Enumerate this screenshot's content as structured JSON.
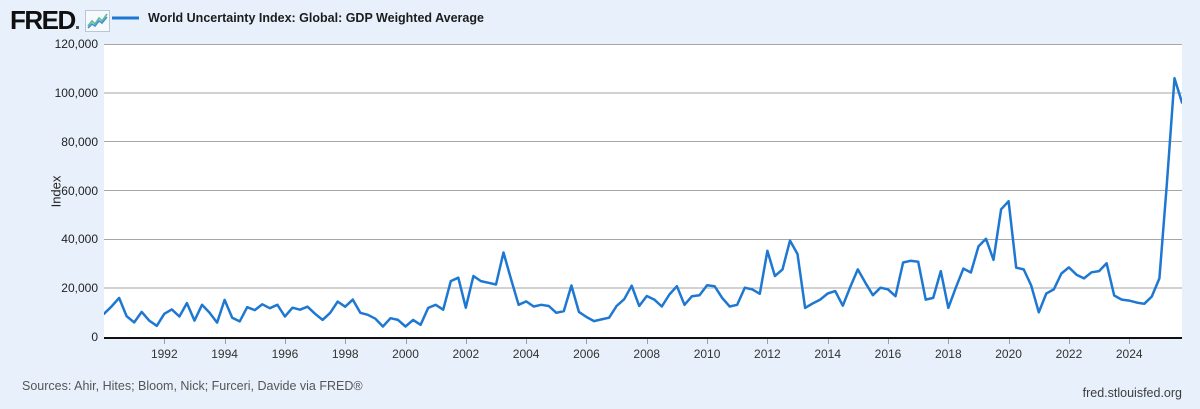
{
  "header": {
    "logo_text": "FRED",
    "legend_label": "World Uncertainty Index: Global: GDP Weighted Average"
  },
  "y_axis": {
    "title": "Index",
    "tick_labels": [
      "0",
      "20,000",
      "40,000",
      "60,000",
      "80,000",
      "100,000",
      "120,000"
    ]
  },
  "x_axis": {
    "tick_labels": [
      "1992",
      "1994",
      "1996",
      "1998",
      "2000",
      "2002",
      "2004",
      "2006",
      "2008",
      "2010",
      "2012",
      "2014",
      "2016",
      "2018",
      "2020",
      "2022",
      "2024"
    ]
  },
  "footer": {
    "sources": "Sources: Ahir, Hites; Bloom, Nick; Furceri, Davide via FRED®",
    "site": "fred.stlouisfed.org"
  },
  "colors": {
    "line": "#1e78d2",
    "background": "#e8f1fb",
    "plot_background": "#ffffff",
    "gridline": "#a6a6a6",
    "axis": "#111111",
    "logo_icon_blue": "#4a8fd3",
    "logo_icon_teal": "#59bf9b"
  },
  "chart_data": {
    "type": "line",
    "title": "World Uncertainty Index: Global: GDP Weighted Average",
    "ylabel": "Index",
    "xlabel": "",
    "legend_position": "top-left",
    "grid": "horizontal-only",
    "ylim": [
      0,
      120000
    ],
    "y_tick_step": 20000,
    "x_start": 1990.0,
    "x_step": 0.25,
    "x_end": 2025.75,
    "x_tick_years": [
      1992,
      1994,
      1996,
      1998,
      2000,
      2002,
      2004,
      2006,
      2008,
      2010,
      2012,
      2014,
      2016,
      2018,
      2020,
      2022,
      2024
    ],
    "frequency": "quarterly",
    "series": [
      {
        "name": "World Uncertainty Index: Global: GDP Weighted Average",
        "values": [
          9500,
          12500,
          16000,
          8500,
          6000,
          10300,
          6700,
          4600,
          9500,
          11300,
          8400,
          13900,
          6700,
          13200,
          10000,
          5900,
          15200,
          7900,
          6400,
          12200,
          11000,
          13400,
          11800,
          13200,
          8400,
          12000,
          11200,
          12400,
          9500,
          7000,
          9900,
          14500,
          12400,
          15300,
          9900,
          9100,
          7500,
          4300,
          7700,
          7000,
          4300,
          7000,
          5000,
          11900,
          13200,
          11200,
          22900,
          24300,
          12000,
          25000,
          22900,
          22200,
          21500,
          34600,
          23600,
          13200,
          14600,
          12500,
          13200,
          12700,
          9900,
          10600,
          21100,
          10300,
          8200,
          6500,
          7200,
          7900,
          12700,
          15500,
          21000,
          12700,
          16800,
          15300,
          12500,
          17400,
          20800,
          13200,
          16700,
          17100,
          21200,
          20800,
          16000,
          12500,
          13200,
          20200,
          19500,
          17700,
          35300,
          25000,
          27700,
          39500,
          34000,
          11900,
          13700,
          15300,
          17800,
          18800,
          12800,
          20500,
          27700,
          22200,
          17100,
          20200,
          19500,
          16700,
          30500,
          31200,
          30800,
          15300,
          16000,
          27000,
          11900,
          20200,
          28000,
          26400,
          37100,
          40200,
          31600,
          52300,
          55600,
          28400,
          27700,
          21100,
          10100,
          17800,
          19500,
          26000,
          28500,
          25500,
          24000,
          26500,
          27000,
          30200,
          17000,
          15300,
          14900,
          14100,
          13600,
          16600,
          24000,
          63000,
          106000,
          96000
        ]
      }
    ]
  }
}
